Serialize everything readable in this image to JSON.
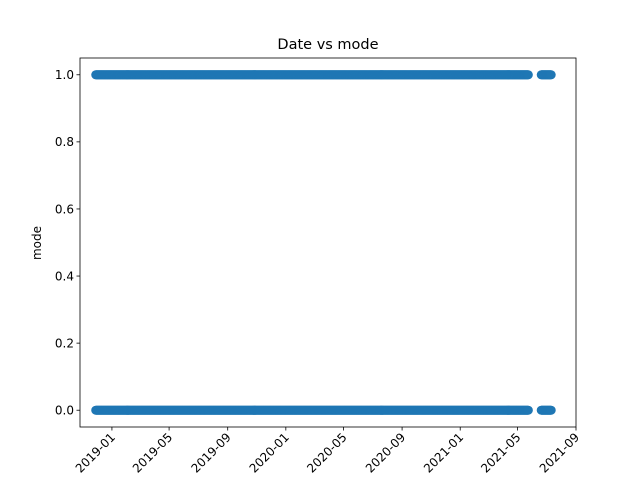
{
  "chart_data": {
    "type": "scatter",
    "title": "Date vs mode",
    "xlabel": "",
    "ylabel": "mode",
    "color": "#1f77b4",
    "x_axis_type": "date",
    "xlim": [
      "2018-10-26",
      "2021-09-01"
    ],
    "ylim": [
      -0.05,
      1.05
    ],
    "x_ticks": [
      "2019-01",
      "2019-05",
      "2019-09",
      "2020-01",
      "2020-05",
      "2020-09",
      "2021-01",
      "2021-05",
      "2021-09"
    ],
    "y_ticks": [
      "0.0",
      "0.2",
      "0.4",
      "0.6",
      "0.8",
      "1.0"
    ],
    "grid": false,
    "legend": null,
    "series": [
      {
        "values": [
          {
            "x_range": [
              "2018-11-28",
              "2021-05-24"
            ],
            "y": 1
          },
          {
            "x_range": [
              "2021-06-20",
              "2021-07-11"
            ],
            "y": 1
          },
          {
            "x_range": [
              "2018-11-28",
              "2021-05-24"
            ],
            "y": 0
          },
          {
            "x_range": [
              "2021-06-20",
              "2021-07-11"
            ],
            "y": 0
          }
        ]
      }
    ]
  }
}
